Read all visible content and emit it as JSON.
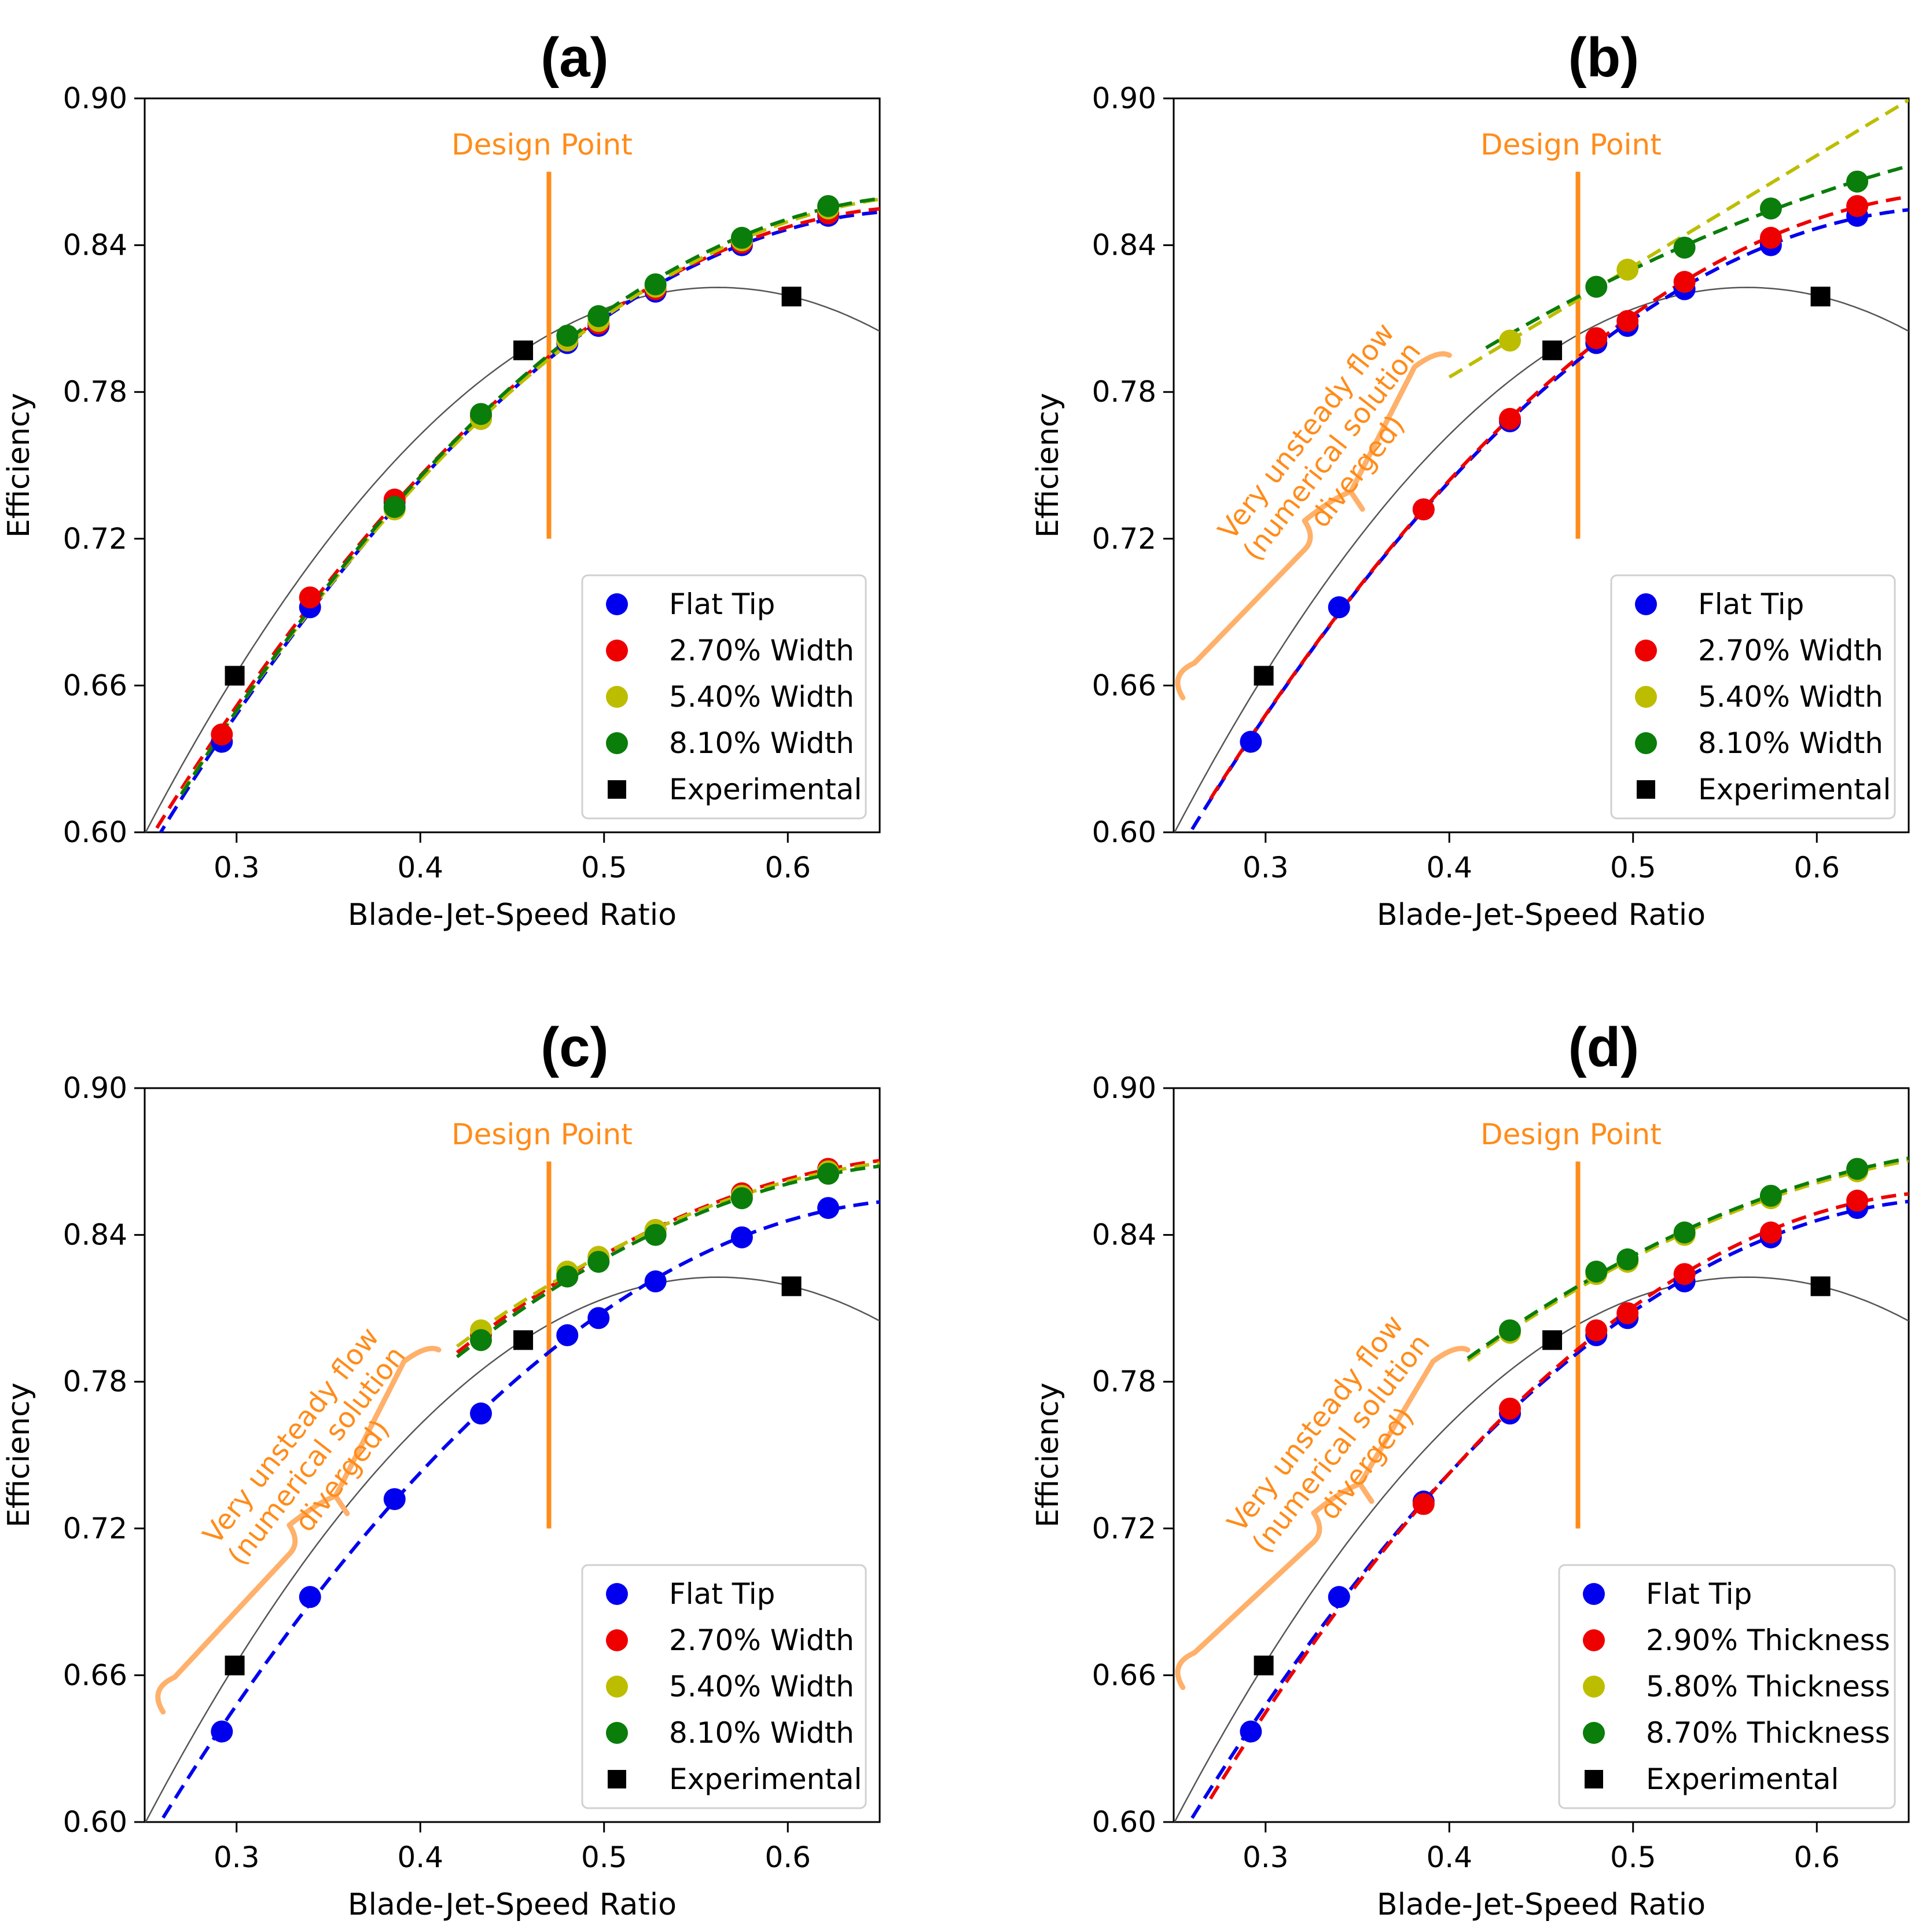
{
  "figure": {
    "colors": {
      "flat": "#0000ee",
      "w27": "#ee0000",
      "w54": "#bdbd00",
      "w81": "#0a7d0a",
      "experimental": "#000000",
      "orange": "#ff8c1a",
      "brace": "#ffb06a",
      "fit": "#555555"
    }
  },
  "chart_data": [
    {
      "type": "scatter",
      "panel": "(a)",
      "title": "(a)",
      "xlabel": "Blade-Jet-Speed Ratio",
      "ylabel": "Efficiency",
      "xlim": [
        0.25,
        0.65
      ],
      "ylim": [
        0.6,
        0.9
      ],
      "xticks": [
        "0.3",
        "0.4",
        "0.5",
        "0.6"
      ],
      "yticks": [
        "0.60",
        "0.66",
        "0.72",
        "0.78",
        "0.84",
        "0.90"
      ],
      "design_point": {
        "x": 0.47,
        "label": "Design Point",
        "y_range": [
          0.72,
          0.87
        ]
      },
      "annotation": null,
      "series": [
        {
          "name": "Flat Tip",
          "color_key": "flat",
          "x": [
            0.292,
            0.34,
            0.386,
            0.433,
            0.48,
            0.497,
            0.528,
            0.575,
            0.622
          ],
          "y": [
            0.637,
            0.692,
            0.735,
            0.769,
            0.8,
            0.807,
            0.821,
            0.84,
            0.852
          ],
          "fit_from": 0.25
        },
        {
          "name": "2.70% Width",
          "color_key": "w27",
          "x": [
            0.292,
            0.34,
            0.386,
            0.433,
            0.48,
            0.497,
            0.528,
            0.575,
            0.622
          ],
          "y": [
            0.64,
            0.696,
            0.736,
            0.77,
            0.801,
            0.808,
            0.822,
            0.841,
            0.853
          ],
          "fit_from": 0.25
        },
        {
          "name": "5.40% Width",
          "color_key": "w54",
          "x": [
            0.386,
            0.433,
            0.48,
            0.497,
            0.528,
            0.575,
            0.622
          ],
          "y": [
            0.732,
            0.769,
            0.801,
            0.809,
            0.823,
            0.842,
            0.855
          ],
          "fit_from": 0.27
        },
        {
          "name": "8.10% Width",
          "color_key": "w81",
          "x": [
            0.386,
            0.433,
            0.48,
            0.497,
            0.528,
            0.575,
            0.622
          ],
          "y": [
            0.733,
            0.771,
            0.803,
            0.811,
            0.824,
            0.843,
            0.856
          ],
          "fit_from": 0.27
        },
        {
          "name": "Experimental",
          "color_key": "experimental",
          "marker": "square",
          "x": [
            0.299,
            0.456,
            0.602
          ],
          "y": [
            0.664,
            0.797,
            0.819
          ]
        }
      ]
    },
    {
      "type": "scatter",
      "panel": "(b)",
      "title": "(b)",
      "xlabel": "Blade-Jet-Speed Ratio",
      "ylabel": "Efficiency",
      "xlim": [
        0.25,
        0.65
      ],
      "ylim": [
        0.6,
        0.9
      ],
      "xticks": [
        "0.3",
        "0.4",
        "0.5",
        "0.6"
      ],
      "yticks": [
        "0.60",
        "0.66",
        "0.72",
        "0.78",
        "0.84",
        "0.90"
      ],
      "design_point": {
        "x": 0.47,
        "label": "Design Point",
        "y_range": [
          0.72,
          0.87
        ]
      },
      "annotation": {
        "lines": [
          "Very unsteady flow",
          "(numerical solution",
          "diverged)"
        ],
        "brace_x_range": [
          0.255,
          0.4
        ],
        "brace_y_range": [
          0.655,
          0.795
        ]
      },
      "series": [
        {
          "name": "Flat Tip",
          "color_key": "flat",
          "x": [
            0.292,
            0.34,
            0.386,
            0.433,
            0.48,
            0.497,
            0.528,
            0.575,
            0.622
          ],
          "y": [
            0.637,
            0.692,
            0.732,
            0.768,
            0.8,
            0.807,
            0.822,
            0.84,
            0.852
          ],
          "fit_from": 0.26
        },
        {
          "name": "2.70% Width",
          "color_key": "w27",
          "x": [
            0.386,
            0.433,
            0.48,
            0.497,
            0.528,
            0.575,
            0.622
          ],
          "y": [
            0.732,
            0.769,
            0.802,
            0.809,
            0.825,
            0.843,
            0.856
          ],
          "fit_from": 0.27
        },
        {
          "name": "5.40% Width",
          "color_key": "w54",
          "x": [
            0.433,
            0.497
          ],
          "y": [
            0.801,
            0.83
          ],
          "fit_from": 0.4
        },
        {
          "name": "8.10% Width",
          "color_key": "w81",
          "x": [
            0.48,
            0.528,
            0.575,
            0.622
          ],
          "y": [
            0.823,
            0.839,
            0.855,
            0.866
          ],
          "fit_from": 0.42
        },
        {
          "name": "Experimental",
          "color_key": "experimental",
          "marker": "square",
          "x": [
            0.299,
            0.456,
            0.602
          ],
          "y": [
            0.664,
            0.797,
            0.819
          ]
        }
      ]
    },
    {
      "type": "scatter",
      "panel": "(c)",
      "title": "(c)",
      "xlabel": "Blade-Jet-Speed Ratio",
      "ylabel": "Efficiency",
      "xlim": [
        0.25,
        0.65
      ],
      "ylim": [
        0.6,
        0.9
      ],
      "xticks": [
        "0.3",
        "0.4",
        "0.5",
        "0.6"
      ],
      "yticks": [
        "0.60",
        "0.66",
        "0.72",
        "0.78",
        "0.84",
        "0.90"
      ],
      "design_point": {
        "x": 0.47,
        "label": "Design Point",
        "y_range": [
          0.72,
          0.87
        ]
      },
      "annotation": {
        "lines": [
          "Very unsteady flow",
          "(numerical solution",
          "diverged)"
        ],
        "brace_x_range": [
          0.26,
          0.41
        ],
        "brace_y_range": [
          0.645,
          0.793
        ]
      },
      "series": [
        {
          "name": "Flat Tip",
          "color_key": "flat",
          "x": [
            0.292,
            0.34,
            0.386,
            0.433,
            0.48,
            0.497,
            0.528,
            0.575,
            0.622
          ],
          "y": [
            0.637,
            0.692,
            0.732,
            0.767,
            0.799,
            0.806,
            0.821,
            0.839,
            0.851
          ],
          "fit_from": 0.26
        },
        {
          "name": "2.70% Width",
          "color_key": "w27",
          "x": [
            0.433,
            0.48,
            0.497,
            0.528,
            0.575,
            0.622
          ],
          "y": [
            0.799,
            0.824,
            0.831,
            0.842,
            0.857,
            0.867
          ],
          "fit_from": 0.42
        },
        {
          "name": "5.40% Width",
          "color_key": "w54",
          "x": [
            0.433,
            0.48,
            0.497,
            0.528,
            0.575,
            0.622
          ],
          "y": [
            0.801,
            0.825,
            0.831,
            0.842,
            0.856,
            0.866
          ],
          "fit_from": 0.42
        },
        {
          "name": "8.10% Width",
          "color_key": "w81",
          "x": [
            0.433,
            0.48,
            0.497,
            0.528,
            0.575,
            0.622
          ],
          "y": [
            0.797,
            0.823,
            0.829,
            0.84,
            0.855,
            0.865
          ],
          "fit_from": 0.42
        },
        {
          "name": "Experimental",
          "color_key": "experimental",
          "marker": "square",
          "x": [
            0.299,
            0.456,
            0.602
          ],
          "y": [
            0.664,
            0.797,
            0.819
          ]
        }
      ]
    },
    {
      "type": "scatter",
      "panel": "(d)",
      "title": "(d)",
      "xlabel": "Blade-Jet-Speed Ratio",
      "ylabel": "Efficiency",
      "xlim": [
        0.25,
        0.65
      ],
      "ylim": [
        0.6,
        0.9
      ],
      "xticks": [
        "0.3",
        "0.4",
        "0.5",
        "0.6"
      ],
      "yticks": [
        "0.60",
        "0.66",
        "0.72",
        "0.78",
        "0.84",
        "0.90"
      ],
      "design_point": {
        "x": 0.47,
        "label": "Design Point",
        "y_range": [
          0.72,
          0.87
        ]
      },
      "annotation": {
        "lines": [
          "Very unsteady flow",
          "(numerical solution",
          "diverged)"
        ],
        "brace_x_range": [
          0.255,
          0.41
        ],
        "brace_y_range": [
          0.655,
          0.793
        ]
      },
      "series": [
        {
          "name": "Flat Tip",
          "color_key": "flat",
          "x": [
            0.292,
            0.34,
            0.386,
            0.433,
            0.48,
            0.497,
            0.528,
            0.575,
            0.622
          ],
          "y": [
            0.637,
            0.692,
            0.731,
            0.767,
            0.799,
            0.806,
            0.821,
            0.839,
            0.851
          ],
          "fit_from": 0.26
        },
        {
          "name": "2.90% Thickness",
          "color_key": "w27",
          "x": [
            0.386,
            0.433,
            0.48,
            0.497,
            0.528,
            0.575,
            0.622
          ],
          "y": [
            0.73,
            0.769,
            0.801,
            0.808,
            0.824,
            0.841,
            0.854
          ],
          "fit_from": 0.27
        },
        {
          "name": "5.80% Thickness",
          "color_key": "w54",
          "x": [
            0.433,
            0.48,
            0.497,
            0.528,
            0.575,
            0.622
          ],
          "y": [
            0.8,
            0.824,
            0.829,
            0.84,
            0.855,
            0.866
          ],
          "fit_from": 0.41
        },
        {
          "name": "8.70% Thickness",
          "color_key": "w81",
          "x": [
            0.433,
            0.48,
            0.497,
            0.528,
            0.575,
            0.622
          ],
          "y": [
            0.801,
            0.825,
            0.83,
            0.841,
            0.856,
            0.867
          ],
          "fit_from": 0.41
        },
        {
          "name": "Experimental",
          "color_key": "experimental",
          "marker": "square",
          "x": [
            0.299,
            0.456,
            0.602
          ],
          "y": [
            0.664,
            0.797,
            0.819
          ]
        }
      ]
    }
  ]
}
